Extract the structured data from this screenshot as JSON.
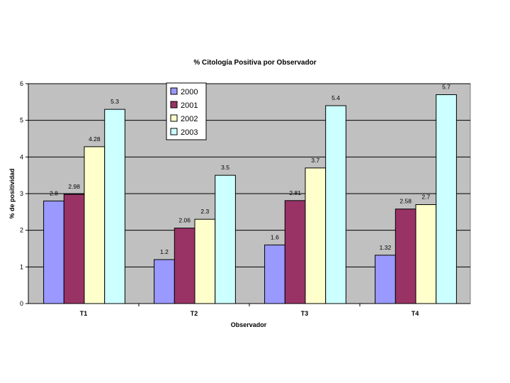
{
  "chart_data": {
    "type": "bar",
    "title": "% Citología Positiva por Observador",
    "xlabel": "Observador",
    "ylabel": "% de positividad",
    "categories": [
      "T1",
      "T2",
      "T3",
      "T4"
    ],
    "ylim": [
      0,
      6
    ],
    "yticks": [
      "0",
      "1",
      "2",
      "3",
      "4",
      "5",
      "6"
    ],
    "grid": true,
    "legend_position": "top-left",
    "series": [
      {
        "name": "2000",
        "color": "#9999ff",
        "values": [
          2.8,
          1.2,
          1.6,
          1.32
        ],
        "labels": [
          "2.8",
          "1.2",
          "1.6",
          "1.32"
        ]
      },
      {
        "name": "2001",
        "color": "#993366",
        "values": [
          2.98,
          2.06,
          2.81,
          2.58
        ],
        "labels": [
          "2.98",
          "2.06",
          "2.81",
          "2.58"
        ]
      },
      {
        "name": "2002",
        "color": "#ffffcc",
        "values": [
          4.28,
          2.3,
          3.7,
          2.7
        ],
        "labels": [
          "4.28",
          "2.3",
          "3.7",
          "2.7"
        ]
      },
      {
        "name": "2003",
        "color": "#ccffff",
        "values": [
          5.3,
          3.5,
          5.4,
          5.7
        ],
        "labels": [
          "5.3",
          "3.5",
          "5.4",
          "5.7"
        ]
      }
    ],
    "plot_background": "#c0c0c0"
  }
}
